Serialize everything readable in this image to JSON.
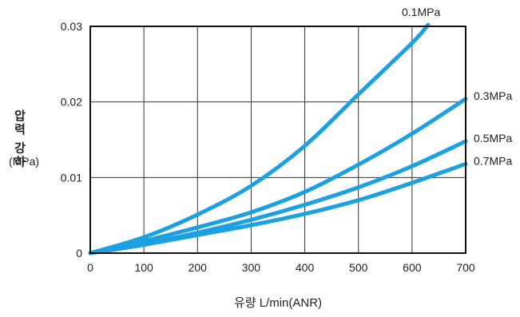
{
  "chart_data": {
    "type": "line",
    "xlabel": "유량 L/min(ANR)",
    "ylabel_main": "압력 강하",
    "ylabel_unit": "(MPa)",
    "xlim": [
      0,
      700
    ],
    "ylim": [
      0,
      0.03
    ],
    "x_ticks": [
      "0",
      "100",
      "200",
      "300",
      "400",
      "500",
      "600",
      "700"
    ],
    "y_ticks": [
      "0",
      "0.01",
      "0.02",
      "0.03"
    ],
    "grid": true,
    "line_color": "#1ba1e2",
    "series": [
      {
        "name": "0.1MPa",
        "x": [
          0,
          100,
          200,
          300,
          400,
          500,
          600,
          630
        ],
        "y": [
          0,
          0.0021,
          0.0051,
          0.0089,
          0.0142,
          0.021,
          0.0278,
          0.0302
        ]
      },
      {
        "name": "0.3MPa",
        "x": [
          0,
          100,
          200,
          300,
          400,
          500,
          600,
          700
        ],
        "y": [
          0,
          0.0016,
          0.0034,
          0.0054,
          0.0081,
          0.0117,
          0.0158,
          0.0204
        ]
      },
      {
        "name": "0.5MPa",
        "x": [
          0,
          100,
          200,
          300,
          400,
          500,
          600,
          700
        ],
        "y": [
          0,
          0.0012,
          0.0027,
          0.0044,
          0.0064,
          0.0087,
          0.0115,
          0.0148
        ]
      },
      {
        "name": "0.7MPa",
        "x": [
          0,
          100,
          200,
          300,
          400,
          500,
          600,
          700
        ],
        "y": [
          0,
          0.0011,
          0.0024,
          0.0037,
          0.0052,
          0.007,
          0.0093,
          0.0118
        ]
      }
    ]
  }
}
